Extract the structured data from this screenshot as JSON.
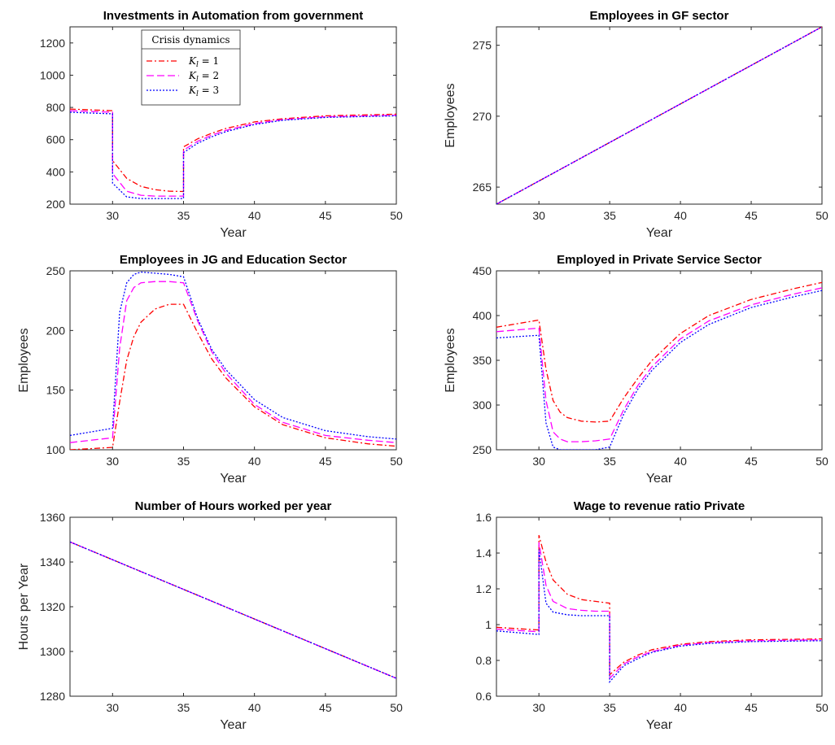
{
  "legend": {
    "title": "Crisis dynamics",
    "entries": [
      {
        "label": "K_l = 1",
        "sub": "l",
        "value": "= 1",
        "color": "#ff0000",
        "dash": "7,3,2,3"
      },
      {
        "label": "K_l = 2",
        "sub": "l",
        "value": "= 2",
        "color": "#ff00ff",
        "dash": "9,4"
      },
      {
        "label": "K_l = 3",
        "sub": "l",
        "value": "= 3",
        "color": "#0000ff",
        "dash": "2,2"
      }
    ]
  },
  "chart_data": [
    {
      "type": "line",
      "title": "Investments in Automation from government",
      "xlabel": "Year",
      "ylabel": "",
      "xlim": [
        27,
        50
      ],
      "ylim": [
        200,
        1300
      ],
      "xticks": [
        30,
        35,
        40,
        45,
        50
      ],
      "yticks": [
        200,
        400,
        600,
        800,
        1000,
        1200
      ],
      "series": [
        {
          "name": "K_l = 1",
          "x": [
            27,
            30,
            30,
            31,
            32,
            33,
            34,
            35,
            35,
            36,
            37,
            38,
            40,
            42,
            45,
            50
          ],
          "y": [
            790,
            780,
            470,
            360,
            310,
            290,
            280,
            278,
            555,
            605,
            640,
            670,
            710,
            730,
            748,
            758
          ]
        },
        {
          "name": "K_l = 2",
          "x": [
            27,
            30,
            30,
            31,
            32,
            33,
            34,
            35,
            35,
            36,
            37,
            38,
            40,
            42,
            45,
            50
          ],
          "y": [
            780,
            770,
            390,
            280,
            255,
            250,
            250,
            250,
            535,
            590,
            628,
            658,
            700,
            725,
            742,
            752
          ]
        },
        {
          "name": "K_l = 3",
          "x": [
            27,
            30,
            30,
            31,
            32,
            33,
            34,
            35,
            35,
            36,
            37,
            38,
            40,
            42,
            45,
            50
          ],
          "y": [
            770,
            760,
            330,
            245,
            235,
            235,
            235,
            235,
            520,
            578,
            618,
            650,
            694,
            720,
            738,
            748
          ]
        }
      ]
    },
    {
      "type": "line",
      "title": "Employees in GF sector",
      "xlabel": "Year",
      "ylabel": "Employees",
      "xlim": [
        27,
        50
      ],
      "ylim": [
        263.8,
        276.3
      ],
      "xticks": [
        30,
        35,
        40,
        45,
        50
      ],
      "yticks": [
        265,
        270,
        275
      ],
      "series": [
        {
          "name": "K_l = 1",
          "x": [
            27,
            50
          ],
          "y": [
            263.8,
            276.3
          ]
        },
        {
          "name": "K_l = 2",
          "x": [
            27,
            50
          ],
          "y": [
            263.8,
            276.3
          ]
        },
        {
          "name": "K_l = 3",
          "x": [
            27,
            50
          ],
          "y": [
            263.8,
            276.3
          ]
        }
      ]
    },
    {
      "type": "line",
      "title": "Employees in JG and Education Sector",
      "xlabel": "Year",
      "ylabel": "Employees",
      "xlim": [
        27,
        50
      ],
      "ylim": [
        100,
        250
      ],
      "xticks": [
        30,
        35,
        40,
        45,
        50
      ],
      "yticks": [
        100,
        150,
        200,
        250
      ],
      "series": [
        {
          "name": "K_l = 1",
          "x": [
            27,
            30,
            30.5,
            31,
            31.5,
            32,
            33,
            34,
            35,
            36,
            37,
            38,
            40,
            42,
            45,
            48,
            50
          ],
          "y": [
            100,
            102,
            140,
            175,
            195,
            207,
            218,
            222,
            222,
            198,
            176,
            160,
            136,
            121,
            110,
            105,
            103
          ]
        },
        {
          "name": "K_l = 2",
          "x": [
            27,
            30,
            30.5,
            31,
            31.5,
            32,
            33,
            34,
            35,
            36,
            37,
            38,
            40,
            42,
            45,
            48,
            50
          ],
          "y": [
            106,
            110,
            185,
            225,
            236,
            240,
            241,
            241,
            240,
            208,
            182,
            164,
            138,
            123,
            112,
            108,
            106
          ]
        },
        {
          "name": "K_l = 3",
          "x": [
            27,
            30,
            30.5,
            31,
            31.5,
            32,
            33,
            34,
            35,
            36,
            37,
            38,
            40,
            42,
            45,
            48,
            50
          ],
          "y": [
            112,
            118,
            215,
            240,
            247,
            249,
            248,
            247,
            245,
            210,
            184,
            167,
            142,
            127,
            116,
            111,
            109
          ]
        }
      ]
    },
    {
      "type": "line",
      "title": "Employed in Private Service Sector",
      "xlabel": "Year",
      "ylabel": "Employees",
      "xlim": [
        27,
        50
      ],
      "ylim": [
        250,
        450
      ],
      "xticks": [
        30,
        35,
        40,
        45,
        50
      ],
      "yticks": [
        250,
        300,
        350,
        400,
        450
      ],
      "series": [
        {
          "name": "K_l = 1",
          "x": [
            27,
            30,
            30.5,
            31,
            31.5,
            32,
            33,
            34,
            35,
            36,
            37,
            38,
            40,
            42,
            45,
            48,
            50
          ],
          "y": [
            387,
            395,
            340,
            305,
            292,
            286,
            282,
            281,
            282,
            308,
            330,
            350,
            380,
            400,
            418,
            430,
            437
          ]
        },
        {
          "name": "K_l = 2",
          "x": [
            27,
            30,
            30.5,
            31,
            31.5,
            32,
            33,
            34,
            35,
            36,
            37,
            38,
            40,
            42,
            45,
            48,
            50
          ],
          "y": [
            382,
            386,
            305,
            270,
            262,
            259,
            259,
            260,
            262,
            295,
            322,
            343,
            374,
            394,
            412,
            424,
            431
          ]
        },
        {
          "name": "K_l = 3",
          "x": [
            27,
            30,
            30.5,
            31,
            31.5,
            32,
            33,
            34,
            35,
            36,
            37,
            38,
            40,
            42,
            45,
            48,
            50
          ],
          "y": [
            375,
            378,
            280,
            253,
            250,
            250,
            250,
            250,
            253,
            290,
            318,
            339,
            370,
            390,
            409,
            421,
            428
          ]
        }
      ]
    },
    {
      "type": "line",
      "title": "Number of Hours worked per year",
      "xlabel": "Year",
      "ylabel": "Hours per Year",
      "xlim": [
        27,
        50
      ],
      "ylim": [
        1280,
        1360
      ],
      "xticks": [
        30,
        35,
        40,
        45,
        50
      ],
      "yticks": [
        1280,
        1300,
        1320,
        1340,
        1360
      ],
      "series": [
        {
          "name": "K_l = 1",
          "x": [
            27,
            50
          ],
          "y": [
            1349,
            1288
          ]
        },
        {
          "name": "K_l = 2",
          "x": [
            27,
            50
          ],
          "y": [
            1349,
            1288
          ]
        },
        {
          "name": "K_l = 3",
          "x": [
            27,
            50
          ],
          "y": [
            1349,
            1288
          ]
        }
      ]
    },
    {
      "type": "line",
      "title": "Wage to revenue ratio Private",
      "xlabel": "Year",
      "ylabel": "",
      "xlim": [
        27,
        50
      ],
      "ylim": [
        0.6,
        1.6
      ],
      "xticks": [
        30,
        35,
        40,
        45,
        50
      ],
      "yticks": [
        0.6,
        0.8,
        1,
        1.2,
        1.4,
        1.6
      ],
      "ytick_labels": [
        "0.6",
        "0.8",
        "1",
        "1.2",
        "1.4",
        "1.6"
      ],
      "series": [
        {
          "name": "K_l = 1",
          "x": [
            27,
            30,
            30,
            30.5,
            31,
            32,
            33,
            34,
            35,
            35,
            36,
            37,
            38,
            40,
            42,
            45,
            50
          ],
          "y": [
            0.985,
            0.97,
            1.5,
            1.35,
            1.25,
            1.17,
            1.14,
            1.13,
            1.12,
            0.72,
            0.79,
            0.83,
            0.86,
            0.89,
            0.905,
            0.915,
            0.92
          ]
        },
        {
          "name": "K_l = 2",
          "x": [
            27,
            30,
            30,
            30.5,
            31,
            32,
            33,
            34,
            35,
            35,
            36,
            37,
            38,
            40,
            42,
            45,
            50
          ],
          "y": [
            0.975,
            0.96,
            1.46,
            1.22,
            1.13,
            1.09,
            1.08,
            1.075,
            1.075,
            0.7,
            0.78,
            0.82,
            0.85,
            0.885,
            0.9,
            0.91,
            0.915
          ]
        },
        {
          "name": "K_l = 3",
          "x": [
            27,
            30,
            30,
            30.5,
            31,
            32,
            33,
            34,
            35,
            35,
            36,
            37,
            38,
            40,
            42,
            45,
            50
          ],
          "y": [
            0.965,
            0.945,
            1.42,
            1.12,
            1.07,
            1.055,
            1.05,
            1.05,
            1.05,
            0.68,
            0.77,
            0.81,
            0.845,
            0.88,
            0.895,
            0.905,
            0.91
          ]
        }
      ]
    }
  ]
}
